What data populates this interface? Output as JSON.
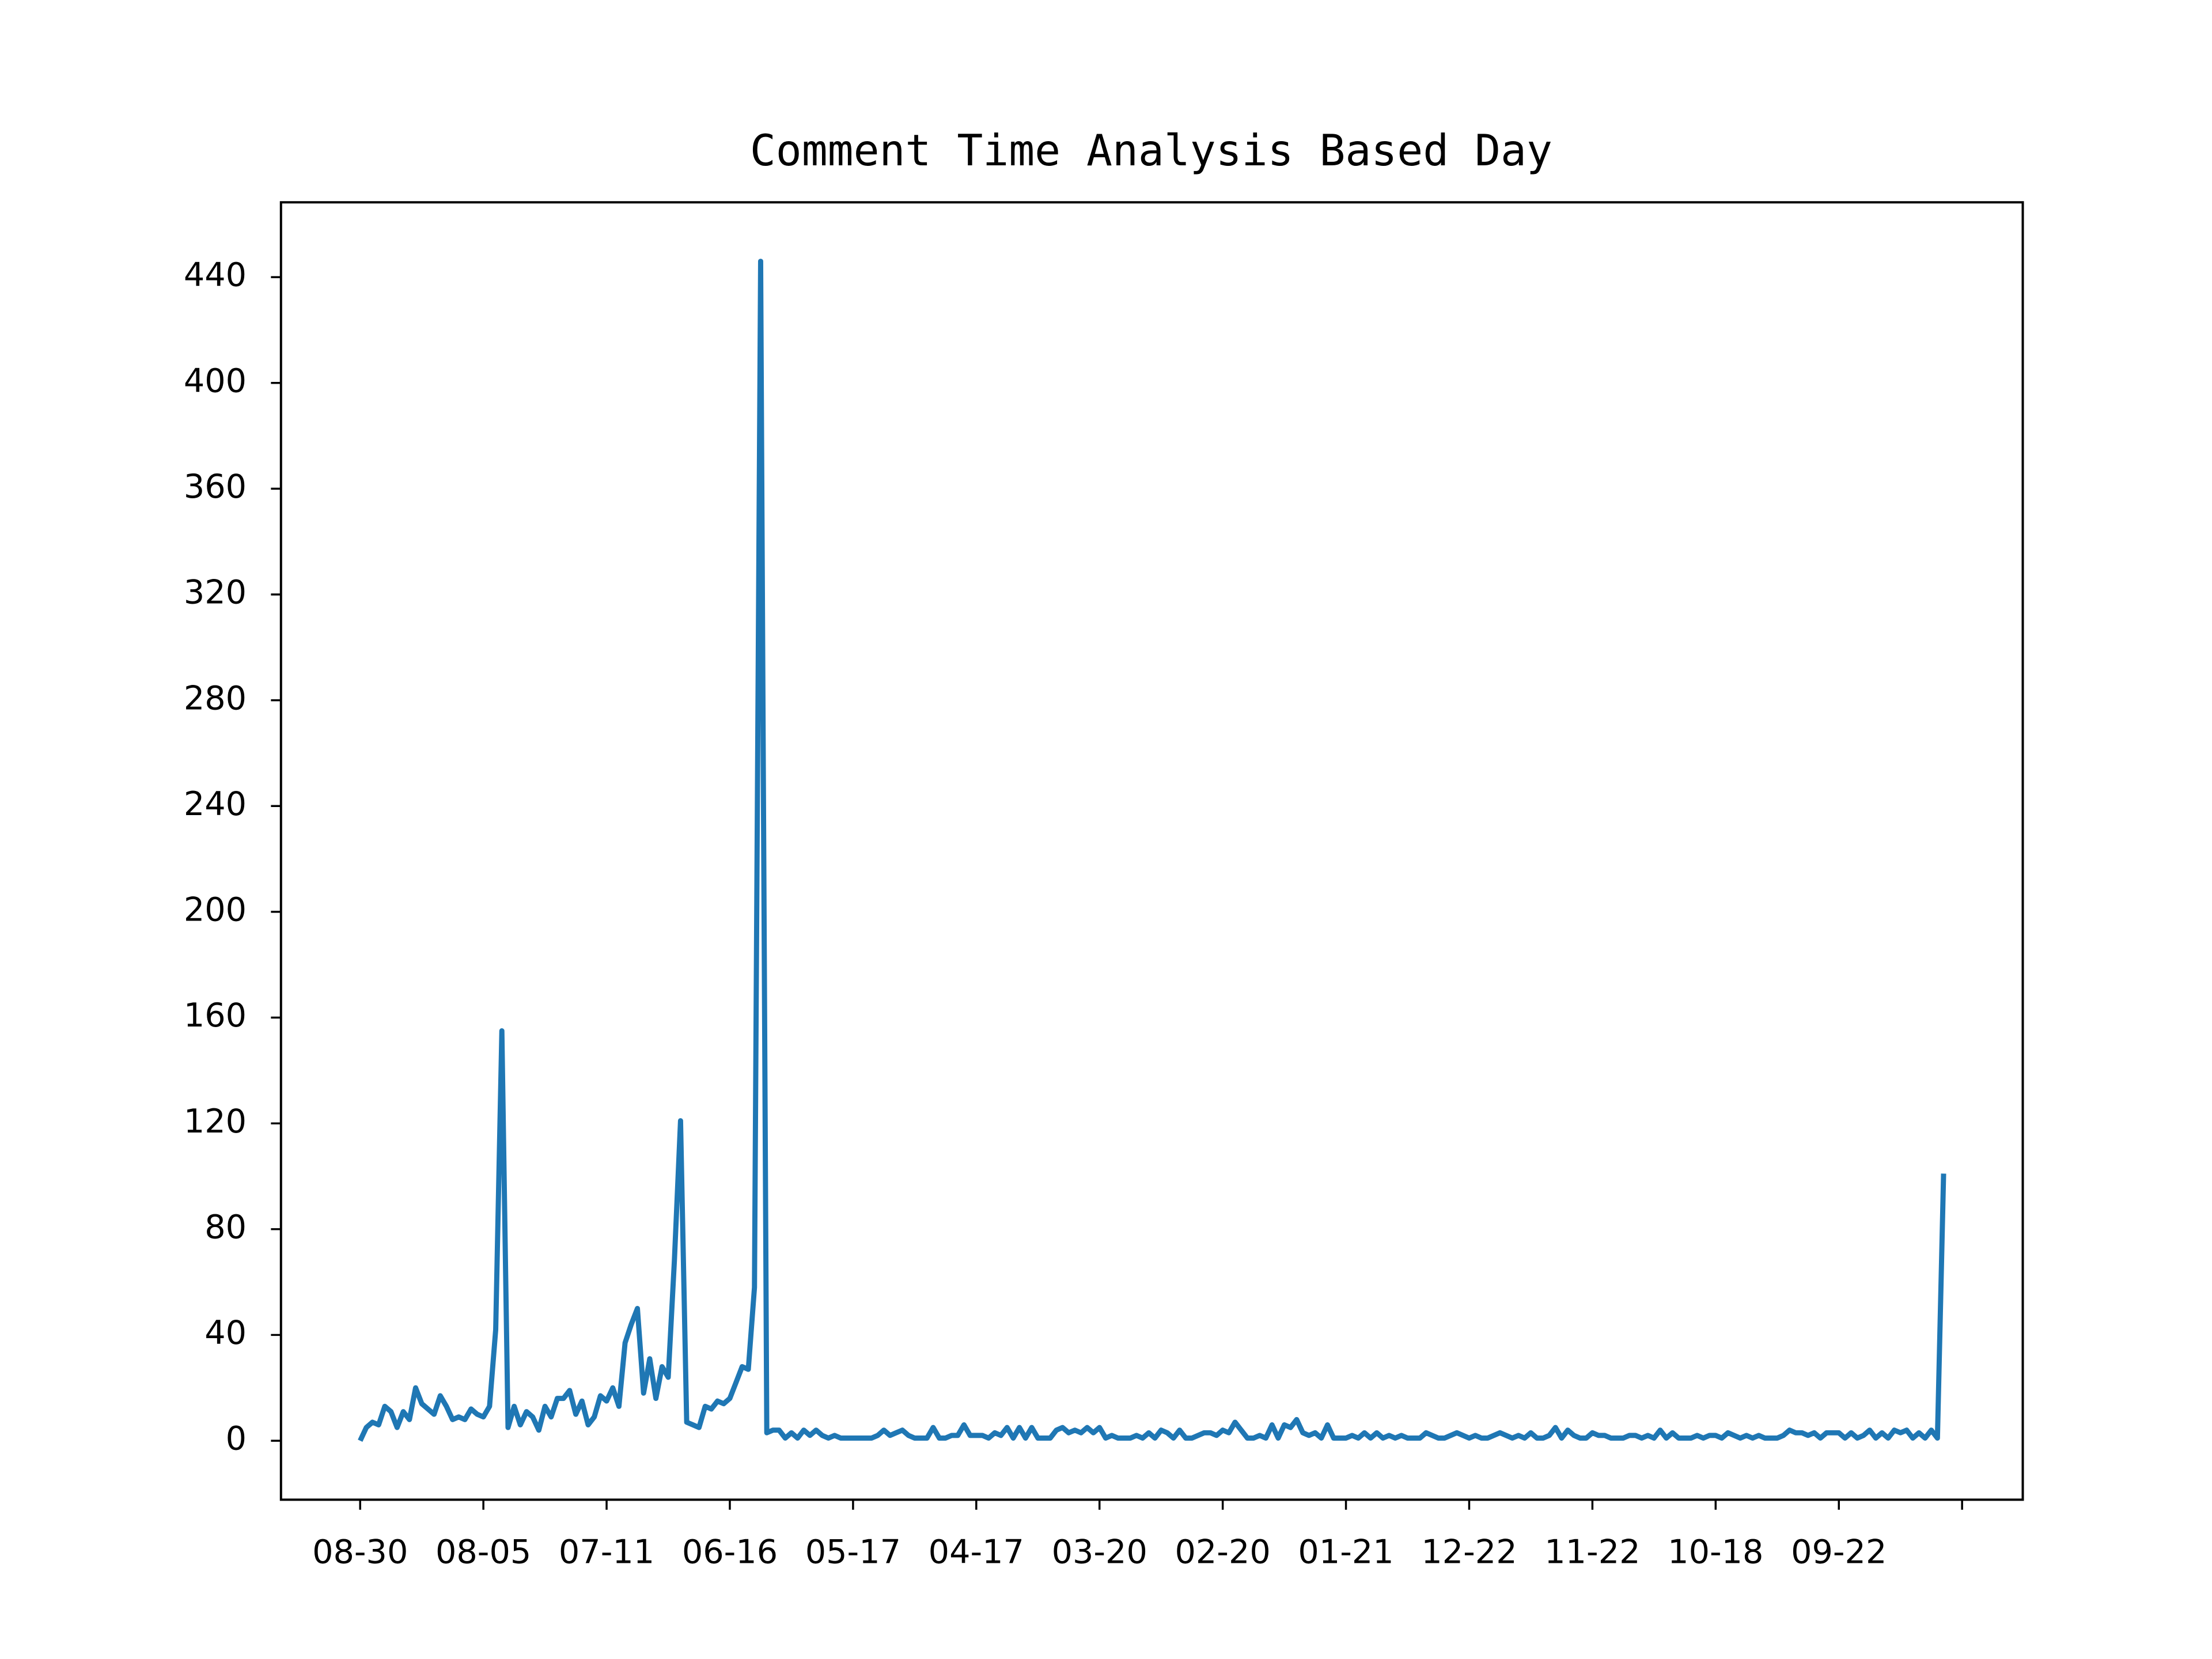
{
  "chart_data": {
    "type": "line",
    "title": "Comment Time Analysis Based Day",
    "color": "#1f77b4",
    "categories": [
      "08-30",
      null,
      null,
      null,
      null,
      null,
      null,
      null,
      null,
      null,
      null,
      null,
      null,
      null,
      null,
      null,
      null,
      null,
      null,
      null,
      "08-05",
      null,
      null,
      null,
      null,
      null,
      null,
      null,
      null,
      null,
      null,
      null,
      null,
      null,
      null,
      null,
      null,
      null,
      null,
      null,
      "07-11",
      null,
      null,
      null,
      null,
      null,
      null,
      null,
      null,
      null,
      null,
      null,
      null,
      null,
      null,
      null,
      null,
      null,
      null,
      null,
      "06-16",
      null,
      null,
      null,
      null,
      null,
      null,
      null,
      null,
      null,
      null,
      null,
      null,
      null,
      null,
      null,
      null,
      null,
      null,
      null,
      "05-17",
      null,
      null,
      null,
      null,
      null,
      null,
      null,
      null,
      null,
      null,
      null,
      null,
      null,
      null,
      null,
      null,
      null,
      null,
      null,
      "04-17",
      null,
      null,
      null,
      null,
      null,
      null,
      null,
      null,
      null,
      null,
      null,
      null,
      null,
      null,
      null,
      null,
      null,
      null,
      null,
      "03-20",
      null,
      null,
      null,
      null,
      null,
      null,
      null,
      null,
      null,
      null,
      null,
      null,
      null,
      null,
      null,
      null,
      null,
      null,
      null,
      "02-20",
      null,
      null,
      null,
      null,
      null,
      null,
      null,
      null,
      null,
      null,
      null,
      null,
      null,
      null,
      null,
      null,
      null,
      null,
      null,
      "01-21",
      null,
      null,
      null,
      null,
      null,
      null,
      null,
      null,
      null,
      null,
      null,
      null,
      null,
      null,
      null,
      null,
      null,
      null,
      null,
      "12-22",
      null,
      null,
      null,
      null,
      null,
      null,
      null,
      null,
      null,
      null,
      null,
      null,
      null,
      null,
      null,
      null,
      null,
      null,
      null,
      "11-22",
      null,
      null,
      null,
      null,
      null,
      null,
      null,
      null,
      null,
      null,
      null,
      null,
      null,
      null,
      null,
      null,
      null,
      null,
      null,
      "10-18",
      null,
      null,
      null,
      null,
      null,
      null,
      null,
      null,
      null,
      null,
      null,
      null,
      null,
      null,
      null,
      null,
      null,
      null,
      null,
      "09-22",
      null,
      null,
      null,
      null,
      null,
      null,
      null,
      null,
      null,
      null,
      null,
      null,
      null,
      null,
      null,
      null,
      null
    ],
    "values": [
      0,
      5,
      7,
      6,
      13,
      11,
      5,
      11,
      8,
      20,
      14,
      12,
      10,
      17,
      13,
      8,
      9,
      8,
      12,
      10,
      9,
      13,
      42,
      155,
      5,
      13,
      6,
      11,
      9,
      4,
      13,
      9,
      16,
      16,
      19,
      10,
      15,
      6,
      9,
      17,
      15,
      20,
      13,
      37,
      44,
      50,
      18,
      31,
      16,
      28,
      24,
      68,
      121,
      7,
      6,
      5,
      13,
      12,
      15,
      14,
      16,
      22,
      28,
      27,
      58,
      446,
      3,
      4,
      4,
      1,
      3,
      1,
      4,
      2,
      4,
      2,
      1,
      2,
      1,
      1,
      1,
      1,
      1,
      1,
      2,
      4,
      2,
      3,
      4,
      2,
      1,
      1,
      1,
      5,
      1,
      1,
      2,
      2,
      6,
      2,
      2,
      2,
      1,
      3,
      2,
      5,
      1,
      5,
      1,
      5,
      1,
      1,
      1,
      4,
      5,
      3,
      4,
      3,
      5,
      3,
      5,
      1,
      2,
      1,
      1,
      1,
      2,
      1,
      3,
      1,
      4,
      3,
      1,
      4,
      1,
      1,
      2,
      3,
      3,
      2,
      4,
      3,
      7,
      4,
      1,
      1,
      2,
      1,
      6,
      1,
      6,
      5,
      8,
      3,
      2,
      3,
      1,
      6,
      1,
      1,
      1,
      2,
      1,
      3,
      1,
      3,
      1,
      2,
      1,
      2,
      1,
      1,
      1,
      3,
      2,
      1,
      1,
      2,
      3,
      2,
      1,
      2,
      1,
      1,
      2,
      3,
      2,
      1,
      2,
      1,
      3,
      1,
      1,
      2,
      5,
      1,
      4,
      2,
      1,
      1,
      3,
      2,
      2,
      1,
      1,
      1,
      2,
      2,
      1,
      2,
      1,
      4,
      1,
      3,
      1,
      1,
      1,
      2,
      1,
      2,
      2,
      1,
      3,
      2,
      1,
      2,
      1,
      2,
      1,
      1,
      1,
      2,
      4,
      3,
      3,
      2,
      3,
      1,
      3,
      3,
      3,
      1,
      3,
      1,
      2,
      4,
      1,
      3,
      1,
      4,
      3,
      4,
      1,
      3,
      1,
      4,
      1,
      101
    ],
    "xlim": [
      -12.85,
      269.85
    ],
    "xticks": [
      0,
      20,
      40,
      60,
      80,
      100,
      120,
      140,
      160,
      180,
      200,
      220,
      240,
      260
    ],
    "ylim": [
      -22.3,
      468.3
    ],
    "yticks": [
      0,
      40,
      80,
      120,
      160,
      200,
      240,
      280,
      320,
      360,
      400,
      440
    ]
  }
}
